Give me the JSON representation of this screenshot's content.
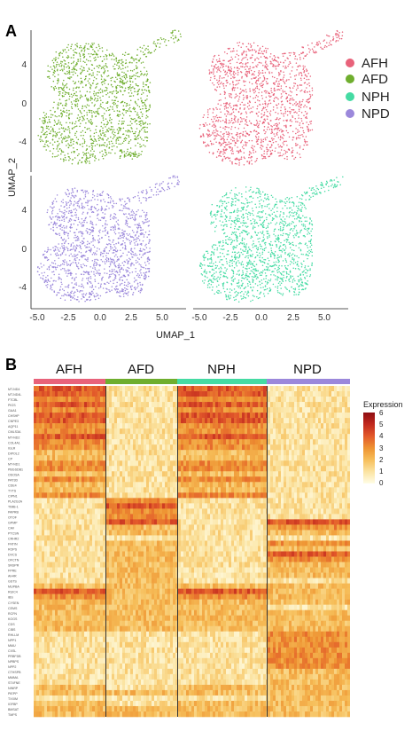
{
  "panel_a": {
    "letter": "A",
    "xlabel": "UMAP_1",
    "ylabel": "UMAP_2",
    "xticks": [
      "-5.0",
      "-2.5",
      "0.0",
      "2.5",
      "5.0"
    ],
    "yticks": [
      "4",
      "0",
      "-4"
    ],
    "legend": [
      {
        "label": "AFH",
        "color": "#e8627a"
      },
      {
        "label": "AFD",
        "color": "#6fae2e"
      },
      {
        "label": "NPH",
        "color": "#45dba3"
      },
      {
        "label": "NPD",
        "color": "#9b88db"
      }
    ]
  },
  "panel_b": {
    "letter": "B",
    "groups": [
      {
        "label": "AFH",
        "color": "#e8627a"
      },
      {
        "label": "AFD",
        "color": "#6fae2e"
      },
      {
        "label": "NPH",
        "color": "#45dba3"
      },
      {
        "label": "NPD",
        "color": "#9b88db"
      }
    ],
    "colorbar": {
      "title": "Expression",
      "ticks": [
        "6",
        "5",
        "4",
        "3",
        "2",
        "1",
        "0"
      ]
    }
  },
  "chart_data": [
    {
      "type": "scatter",
      "title": "",
      "xlabel": "UMAP_1",
      "ylabel": "UMAP_2",
      "xlim": [
        -5.3,
        6.8
      ],
      "ylim": [
        -5.6,
        6.5
      ],
      "facets": [
        {
          "name": "AFD",
          "color": "#6fae2e",
          "row": 0,
          "col": 0
        },
        {
          "name": "AFH",
          "color": "#e8627a",
          "row": 0,
          "col": 1
        },
        {
          "name": "NPD",
          "color": "#9b88db",
          "row": 1,
          "col": 0
        },
        {
          "name": "NPH",
          "color": "#45dba3",
          "row": 1,
          "col": 1
        }
      ],
      "shape": {
        "upper_lobe": {
          "x": [
            -4.0,
            1.6
          ],
          "y": [
            0.4,
            5.4
          ]
        },
        "lower_lobe": {
          "x": [
            -4.8,
            1.8
          ],
          "y": [
            -5.0,
            1.0
          ]
        },
        "right_arm": {
          "x": [
            0.8,
            4.0
          ],
          "y": [
            -4.5,
            4.5
          ]
        },
        "tail": {
          "x": [
            3.4,
            6.3
          ],
          "y": [
            4.3,
            6.3
          ]
        }
      },
      "points_per_panel": 1500
    },
    {
      "type": "heatmap",
      "title": "",
      "columns": [
        "AFH",
        "AFD",
        "NPH",
        "NPD"
      ],
      "color_scale": {
        "min": 0,
        "max": 6,
        "colors": [
          "#fffde6",
          "#fbe3a0",
          "#f6bd58",
          "#ee9332",
          "#e2582a",
          "#c0281e",
          "#8e0e12"
        ]
      },
      "gene_labels": [
        "MT-ND4",
        "MT-ND4L",
        "FTCBL",
        "PIGS",
        "GAA1",
        "CHSHP",
        "CNPE3",
        "AQP11",
        "CMLS3A",
        "MT-ND2",
        "COL4A1",
        "IGLR",
        "DIPOL2",
        "CP",
        "MT-ND1",
        "PBGSDB1",
        "OSOSA",
        "PAT3D",
        "CDE4",
        "TYTS",
        "CIPN1",
        "PLA2G2A",
        "TIMB-1",
        "PAPRB",
        "OTOF",
        "GPMP",
        "CAV",
        "PTCSN",
        "CRHR2",
        "FNTIN",
        "ROPS",
        "DVCS",
        "OFCTN",
        "SNSPR",
        "FPRE",
        "AH4R",
        "GSTS",
        "MUPBA",
        "RUIC4",
        "IBS",
        "CYSEN",
        "CEMS",
        "RCFN",
        "KOGS",
        "CDS",
        "CIBS",
        "RHLLM",
        "NPP1",
        "MMU",
        "CXSL",
        "PRBFDB",
        "NPBPS",
        "NPP2",
        "CTHSPB",
        "MMMA",
        "ST4FNE",
        "NINRP",
        "PIEPP",
        "TXXIM",
        "IGFBP",
        "BMSAT",
        "TMPS"
      ],
      "group_profiles": {
        "AFH": [
          4,
          4,
          3,
          4,
          3,
          4,
          4,
          3,
          3,
          4,
          3,
          3,
          2,
          2,
          3,
          3,
          2,
          3,
          2,
          2,
          3,
          1,
          1,
          1,
          1,
          1,
          1,
          1,
          1,
          1,
          1,
          1,
          1,
          1,
          1,
          1,
          1,
          2,
          4,
          3,
          2,
          2,
          2,
          2,
          2,
          2,
          1,
          1,
          1,
          1,
          1,
          1,
          1,
          1,
          1,
          1,
          2,
          2,
          1,
          2,
          2,
          2
        ],
        "AFD": [
          1,
          1,
          1,
          1,
          1,
          1,
          1,
          1,
          1,
          1,
          1,
          1,
          1,
          1,
          1,
          1,
          1,
          1,
          1,
          1,
          1,
          3,
          4,
          3,
          3,
          4,
          2,
          2,
          1,
          2,
          2,
          2,
          2,
          2,
          2,
          2,
          2,
          2,
          2,
          2,
          2,
          2,
          2,
          2,
          2,
          2,
          1,
          1,
          1,
          1,
          1,
          1,
          1,
          1,
          1,
          1,
          1,
          2,
          1,
          1,
          2,
          2
        ],
        "NPH": [
          4,
          4,
          3,
          4,
          3,
          4,
          4,
          3,
          3,
          4,
          3,
          3,
          2,
          2,
          3,
          3,
          2,
          3,
          2,
          2,
          3,
          1,
          1,
          1,
          1,
          1,
          1,
          1,
          1,
          1,
          1,
          1,
          1,
          1,
          1,
          1,
          1,
          2,
          4,
          3,
          2,
          2,
          2,
          2,
          2,
          2,
          1,
          1,
          1,
          1,
          1,
          1,
          1,
          1,
          1,
          1,
          2,
          2,
          1,
          2,
          2,
          2
        ],
        "NPD": [
          1,
          1,
          1,
          1,
          1,
          1,
          1,
          1,
          1,
          1,
          1,
          1,
          1,
          1,
          1,
          1,
          1,
          1,
          1,
          1,
          1,
          1,
          1,
          1,
          1,
          4,
          3,
          2,
          1,
          3,
          2,
          4,
          3,
          2,
          2,
          2,
          1,
          2,
          2,
          2,
          2,
          1,
          2,
          2,
          2,
          2,
          3,
          3,
          3,
          3,
          3,
          3,
          3,
          2,
          2,
          2,
          2,
          2,
          2,
          2,
          2,
          2
        ]
      }
    }
  ]
}
